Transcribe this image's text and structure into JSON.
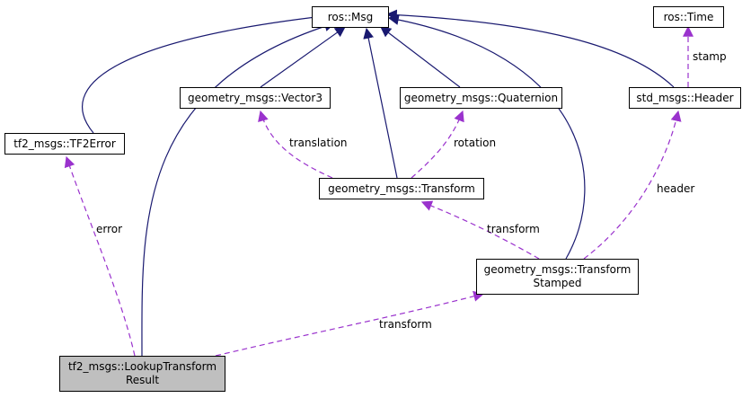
{
  "colors": {
    "inheritance": "#191970",
    "usage": "#9a32cd",
    "focus_fill": "#bfbfbf"
  },
  "nodes": {
    "ros_msg": "ros::Msg",
    "ros_time": "ros::Time",
    "tf2_error": "tf2_msgs::TF2Error",
    "vector3": "geometry_msgs::Vector3",
    "quaternion": "geometry_msgs::Quaternion",
    "header": "std_msgs::Header",
    "transform": "geometry_msgs::Transform",
    "transform_stamped": {
      "line1": "geometry_msgs::Transform",
      "line2": "Stamped"
    },
    "lookup_result": {
      "line1": "tf2_msgs::LookupTransform",
      "line2": "Result"
    }
  },
  "edge_labels": {
    "stamp": "stamp",
    "translation": "translation",
    "rotation": "rotation",
    "header": "header",
    "transform_to_stamped": "transform",
    "error": "error",
    "transform_to_result": "transform"
  }
}
